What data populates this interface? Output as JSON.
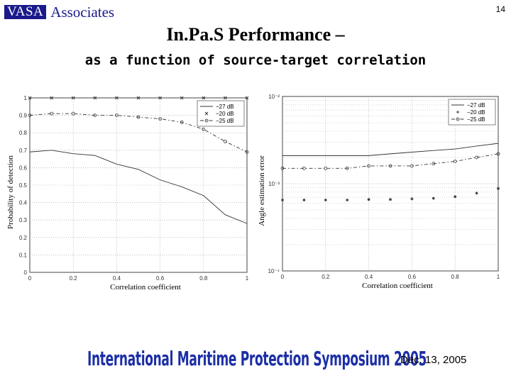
{
  "header": {
    "logo_box_text": "VASA",
    "logo_word": "Associates",
    "page_number": "14"
  },
  "title": "In.Pa.S Performance –",
  "subtitle": "as a function of source-target correlation",
  "footer": {
    "banner": "International Maritime Protection Symposium 2005",
    "date": "Dec. 13, 2005"
  },
  "chart_data": [
    {
      "type": "line",
      "xlabel": "Correlation coefficient",
      "ylabel": "Probability of detection",
      "xlim": [
        0,
        1
      ],
      "ylim": [
        0,
        1
      ],
      "grid": true,
      "legend_position": "top-right",
      "x_ticks": [
        "0",
        "0.2",
        "0.4",
        "0.6",
        "0.8",
        "1"
      ],
      "y_ticks": [
        "0",
        "0.1",
        "0.2",
        "0.3",
        "0.4",
        "0.5",
        "0.6",
        "0.7",
        "0.8",
        "0.9",
        "1"
      ],
      "x": [
        0,
        0.1,
        0.2,
        0.3,
        0.4,
        0.5,
        0.6,
        0.7,
        0.8,
        0.9,
        1
      ],
      "series": [
        {
          "name": "−27 dB",
          "style": "solid",
          "values": [
            0.69,
            0.7,
            0.68,
            0.67,
            0.62,
            0.59,
            0.53,
            0.49,
            0.44,
            0.33,
            0.28
          ]
        },
        {
          "name": "−20 dB",
          "style": "dotted",
          "marker": "x",
          "values": [
            1,
            1,
            1,
            1,
            1,
            1,
            1,
            1,
            1,
            1,
            1
          ]
        },
        {
          "name": "−25 dB",
          "style": "dashdot",
          "marker": "o",
          "values": [
            0.9,
            0.91,
            0.91,
            0.9,
            0.9,
            0.89,
            0.88,
            0.86,
            0.82,
            0.75,
            0.69
          ]
        }
      ]
    },
    {
      "type": "line",
      "xlabel": "Correlation coefficient",
      "ylabel": "Angle estimation error",
      "xlim": [
        0,
        1
      ],
      "ylim": [
        0.0001,
        0.01
      ],
      "yscale": "log",
      "grid": true,
      "legend_position": "top-right",
      "x_ticks": [
        "0",
        "0.2",
        "0.4",
        "0.6",
        "0.8",
        "1"
      ],
      "y_ticks": [
        "10⁻²",
        "10⁻³",
        "10⁻⁴"
      ],
      "x": [
        0,
        0.1,
        0.2,
        0.3,
        0.4,
        0.5,
        0.6,
        0.7,
        0.8,
        0.9,
        1
      ],
      "series": [
        {
          "name": "−27 dB",
          "style": "solid",
          "values": [
            0.0021,
            0.0021,
            0.0021,
            0.0021,
            0.0021,
            0.0022,
            0.0023,
            0.0024,
            0.0025,
            0.0027,
            0.0029
          ]
        },
        {
          "name": "−20 dB",
          "style": "dotted",
          "marker": "*",
          "values": [
            0.00065,
            0.00065,
            0.00065,
            0.00065,
            0.00066,
            0.00066,
            0.00067,
            0.00068,
            0.00071,
            0.00078,
            0.00088
          ]
        },
        {
          "name": "−25 dB",
          "style": "dashdot",
          "marker": "o",
          "values": [
            0.0015,
            0.0015,
            0.0015,
            0.0015,
            0.0016,
            0.0016,
            0.0016,
            0.0017,
            0.0018,
            0.002,
            0.0022
          ]
        }
      ]
    }
  ]
}
